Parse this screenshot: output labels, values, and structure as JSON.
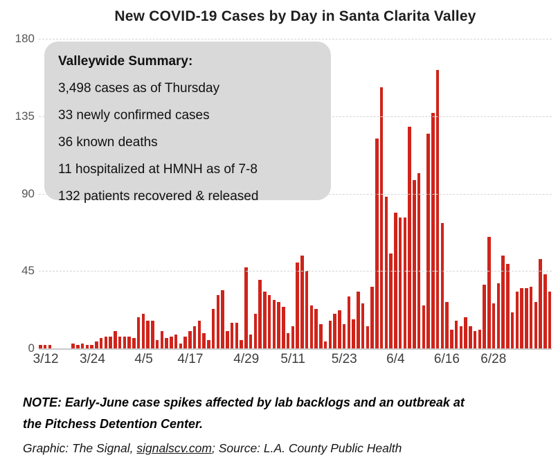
{
  "title": "New COVID-19 Cases by Day in Santa Clarita Valley",
  "summary_box": {
    "heading": "Valleywide Summary:",
    "lines": [
      "3,498 cases as of Thursday",
      "33 newly confirmed cases",
      "36 known deaths",
      "11 hospitalized at HMNH as of 7-8",
      "132 patients recovered & released"
    ]
  },
  "notes": {
    "note_line1": "NOTE: Early-June case spikes affected by lab backlogs and an outbreak at",
    "note_line2": "the Pitchess Detention Center.",
    "credit_prefix": "Graphic: The Signal, ",
    "credit_site": "signalscv.com",
    "credit_suffix": "; Source: L.A. County Public Health"
  },
  "colors": {
    "bar": "#cf241b",
    "grid": "#d4d4d4",
    "summary_bg": "#d9d9d9"
  },
  "chart_data": {
    "type": "bar",
    "title": "New COVID-19 Cases by Day in Santa Clarita Valley",
    "xlabel": "",
    "ylabel": "",
    "ylim": [
      0,
      180
    ],
    "yticks": [
      0,
      45,
      90,
      135,
      180
    ],
    "grid": "horizontal-dashed",
    "x_labels": [
      "3/12",
      "3/24",
      "4/5",
      "4/17",
      "4/29",
      "5/11",
      "5/23",
      "6/4",
      "6/16",
      "6/28"
    ],
    "x_label_indices": [
      1,
      11,
      22,
      32,
      44,
      54,
      65,
      76,
      87,
      97
    ],
    "values": [
      2,
      2,
      2,
      0,
      0,
      0,
      0,
      3,
      2,
      3,
      2,
      2,
      4,
      6,
      7,
      7,
      10,
      7,
      7,
      7,
      6,
      18,
      20,
      16,
      16,
      5,
      10,
      6,
      7,
      8,
      3,
      7,
      10,
      13,
      16,
      9,
      5,
      23,
      31,
      34,
      10,
      15,
      15,
      5,
      47,
      8,
      20,
      40,
      33,
      31,
      28,
      27,
      24,
      9,
      13,
      50,
      54,
      45,
      25,
      23,
      14,
      4,
      16,
      20,
      22,
      14,
      30,
      17,
      33,
      26,
      13,
      36,
      122,
      152,
      88,
      55,
      79,
      76,
      76,
      129,
      98,
      102,
      25,
      125,
      137,
      162,
      73,
      27,
      11,
      16,
      13,
      18,
      13,
      10,
      11,
      37,
      65,
      26,
      38,
      54,
      49,
      21,
      33,
      35,
      35,
      36,
      27,
      52,
      43,
      33
    ]
  }
}
